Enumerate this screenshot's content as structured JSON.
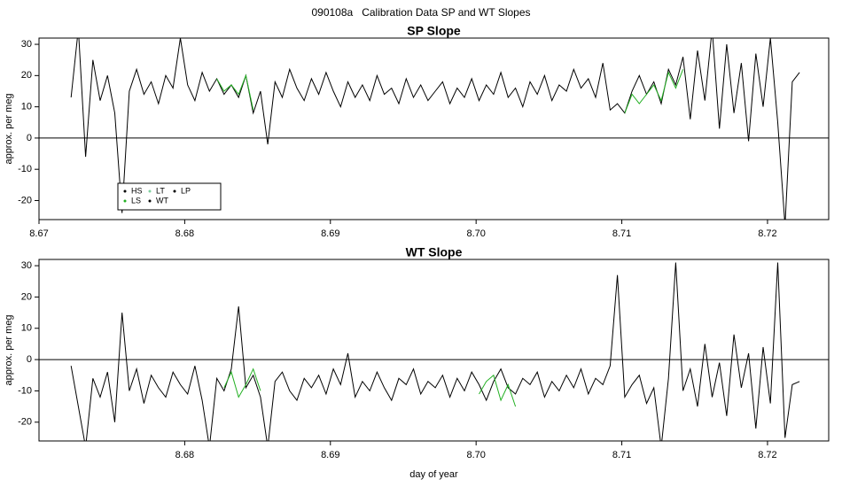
{
  "title": "090108a   Calibration Data SP and WT Slopes",
  "chart_data": [
    {
      "type": "line",
      "title": "SP Slope",
      "ylabel": "approx. per meg",
      "x": [
        8.6722,
        8.6727,
        8.6732,
        8.6737,
        8.6742,
        8.6747,
        8.6752,
        8.6757,
        8.6762,
        8.6767,
        8.6772,
        8.6777,
        8.6782,
        8.6787,
        8.6792,
        8.6797,
        8.6802,
        8.6807,
        8.6812,
        8.6817,
        8.6822,
        8.6827,
        8.6832,
        8.6837,
        8.6842,
        8.6847,
        8.6852,
        8.6857,
        8.6862,
        8.6867,
        8.6872,
        8.6877,
        8.6882,
        8.6887,
        8.6892,
        8.6897,
        8.6902,
        8.6907,
        8.6912,
        8.6917,
        8.6922,
        8.6927,
        8.6932,
        8.6937,
        8.6942,
        8.6947,
        8.6952,
        8.6957,
        8.6962,
        8.6967,
        8.6972,
        8.6977,
        8.6982,
        8.6987,
        8.6992,
        8.6997,
        8.7002,
        8.7007,
        8.7012,
        8.7017,
        8.7022,
        8.7027,
        8.7032,
        8.7037,
        8.7042,
        8.7047,
        8.7052,
        8.7057,
        8.7062,
        8.7067,
        8.7072,
        8.7077,
        8.7082,
        8.7087,
        8.7092,
        8.7097,
        8.7102,
        8.7107,
        8.7112,
        8.7117,
        8.7122,
        8.7127,
        8.7132,
        8.7137,
        8.7142,
        8.7147,
        8.7152,
        8.7157,
        8.7162,
        8.7167,
        8.7172,
        8.7177,
        8.7182,
        8.7187,
        8.7192,
        8.7197,
        8.7202,
        8.7207,
        8.7212,
        8.7217,
        8.7222
      ],
      "values": [
        13,
        35,
        -6,
        25,
        12,
        20,
        8,
        -24,
        15,
        22,
        14,
        18,
        11,
        20,
        16,
        32,
        17,
        12,
        21,
        15,
        19,
        14,
        17,
        13,
        20,
        8,
        15,
        -2,
        18,
        13,
        22,
        16,
        12,
        19,
        14,
        21,
        15,
        10,
        18,
        13,
        17,
        12,
        20,
        14,
        16,
        11,
        19,
        13,
        17,
        12,
        15,
        18,
        11,
        16,
        13,
        19,
        12,
        17,
        14,
        21,
        13,
        16,
        10,
        18,
        14,
        20,
        12,
        17,
        15,
        22,
        16,
        19,
        13,
        24,
        9,
        11,
        8,
        15,
        20,
        14,
        18,
        11,
        22,
        17,
        26,
        6,
        28,
        12,
        35,
        3,
        30,
        8,
        24,
        -1,
        27,
        10,
        32,
        5,
        -28,
        18,
        21
      ],
      "color": "#000000",
      "highlight_values": [
        null,
        null,
        null,
        null,
        null,
        null,
        null,
        null,
        null,
        null,
        null,
        null,
        null,
        null,
        null,
        null,
        null,
        null,
        null,
        null,
        19,
        15,
        17,
        14,
        20,
        9,
        null,
        null,
        null,
        null,
        null,
        null,
        null,
        null,
        null,
        null,
        null,
        null,
        null,
        null,
        null,
        null,
        null,
        null,
        null,
        null,
        null,
        null,
        null,
        null,
        null,
        null,
        null,
        null,
        null,
        null,
        null,
        null,
        null,
        null,
        null,
        null,
        null,
        null,
        null,
        null,
        null,
        null,
        null,
        null,
        null,
        null,
        null,
        null,
        null,
        null,
        8,
        14,
        11,
        14,
        17,
        12,
        21,
        16,
        22,
        null,
        null,
        null,
        null,
        null,
        null,
        null,
        null,
        null,
        null,
        null,
        null,
        null,
        null,
        null,
        null
      ],
      "highlight_color": "#22b022",
      "hline": 0,
      "xlim": [
        8.67,
        8.7242
      ],
      "ylim": [
        -26.1,
        32
      ],
      "xticks": [
        8.67,
        8.68,
        8.69,
        {
          "value": 8.7,
          "label": "8.70"
        },
        8.71,
        8.72
      ],
      "yticks": [
        -20,
        -10,
        0,
        10,
        20,
        30
      ],
      "legend": {
        "position": "bottom-left",
        "entries": [
          {
            "name": "HS",
            "color": "#000000"
          },
          {
            "name": "LS",
            "color": "#22b022"
          },
          {
            "name": "LT",
            "color": "#7fd0a0"
          },
          {
            "name": "WT",
            "color": "#000000"
          },
          {
            "name": "LP",
            "color": "#000000"
          }
        ]
      }
    },
    {
      "type": "line",
      "title": "WT Slope",
      "ylabel": "approx. per meg",
      "xlabel": "day of year",
      "x": [
        8.6722,
        8.6727,
        8.6732,
        8.6737,
        8.6742,
        8.6747,
        8.6752,
        8.6757,
        8.6762,
        8.6767,
        8.6772,
        8.6777,
        8.6782,
        8.6787,
        8.6792,
        8.6797,
        8.6802,
        8.6807,
        8.6812,
        8.6817,
        8.6822,
        8.6827,
        8.6832,
        8.6837,
        8.6842,
        8.6847,
        8.6852,
        8.6857,
        8.6862,
        8.6867,
        8.6872,
        8.6877,
        8.6882,
        8.6887,
        8.6892,
        8.6897,
        8.6902,
        8.6907,
        8.6912,
        8.6917,
        8.6922,
        8.6927,
        8.6932,
        8.6937,
        8.6942,
        8.6947,
        8.6952,
        8.6957,
        8.6962,
        8.6967,
        8.6972,
        8.6977,
        8.6982,
        8.6987,
        8.6992,
        8.6997,
        8.7002,
        8.7007,
        8.7012,
        8.7017,
        8.7022,
        8.7027,
        8.7032,
        8.7037,
        8.7042,
        8.7047,
        8.7052,
        8.7057,
        8.7062,
        8.7067,
        8.7072,
        8.7077,
        8.7082,
        8.7087,
        8.7092,
        8.7097,
        8.7102,
        8.7107,
        8.7112,
        8.7117,
        8.7122,
        8.7127,
        8.7132,
        8.7137,
        8.7142,
        8.7147,
        8.7152,
        8.7157,
        8.7162,
        8.7167,
        8.7172,
        8.7177,
        8.7182,
        8.7187,
        8.7192,
        8.7197,
        8.7202,
        8.7207,
        8.7212,
        8.7217,
        8.7222
      ],
      "values": [
        -2,
        -15,
        -28,
        -6,
        -12,
        -4,
        -20,
        15,
        -10,
        -3,
        -14,
        -5,
        -9,
        -12,
        -4,
        -8,
        -11,
        -2,
        -13,
        -28,
        -6,
        -10,
        -3,
        17,
        -9,
        -5,
        -12,
        -28,
        -7,
        -4,
        -10,
        -13,
        -6,
        -9,
        -5,
        -11,
        -3,
        -8,
        2,
        -12,
        -7,
        -10,
        -4,
        -9,
        -13,
        -6,
        -8,
        -3,
        -11,
        -7,
        -9,
        -5,
        -12,
        -6,
        -10,
        -4,
        -8,
        -13,
        -7,
        -3,
        -9,
        -11,
        -6,
        -8,
        -4,
        -12,
        -7,
        -10,
        -5,
        -9,
        -3,
        -11,
        -6,
        -8,
        -2,
        27,
        -12,
        -8,
        -5,
        -14,
        -9,
        -28,
        -6,
        31,
        -10,
        -3,
        -15,
        5,
        -12,
        -1,
        -18,
        8,
        -9,
        2,
        -22,
        4,
        -14,
        31,
        -25,
        -8,
        -7
      ],
      "color": "#000000",
      "highlight_values": [
        null,
        null,
        null,
        null,
        null,
        null,
        null,
        null,
        null,
        null,
        null,
        null,
        null,
        null,
        null,
        null,
        null,
        null,
        null,
        null,
        null,
        -9,
        -4,
        -12,
        -8,
        -3,
        -10,
        null,
        null,
        null,
        null,
        null,
        null,
        null,
        null,
        null,
        null,
        null,
        null,
        null,
        null,
        null,
        null,
        null,
        null,
        null,
        null,
        null,
        null,
        null,
        null,
        null,
        null,
        null,
        null,
        null,
        -11,
        -7,
        -5,
        -13,
        -8,
        -15,
        null,
        null,
        null,
        null,
        null,
        null,
        null,
        null,
        null,
        null,
        null,
        null,
        null,
        null,
        null,
        null,
        null,
        null,
        null,
        null,
        null,
        null,
        null,
        null,
        null,
        null,
        null,
        null,
        null,
        null,
        null,
        null,
        null,
        null,
        null,
        null,
        null,
        null,
        null
      ],
      "highlight_color": "#22b022",
      "hline": 0,
      "xlim": [
        8.67,
        8.7242
      ],
      "ylim": [
        -26,
        32
      ],
      "xticks": [
        8.68,
        8.69,
        {
          "value": 8.7,
          "label": "8.70"
        },
        8.71,
        8.72
      ],
      "yticks": [
        -20,
        -10,
        0,
        10,
        20,
        30
      ]
    }
  ]
}
